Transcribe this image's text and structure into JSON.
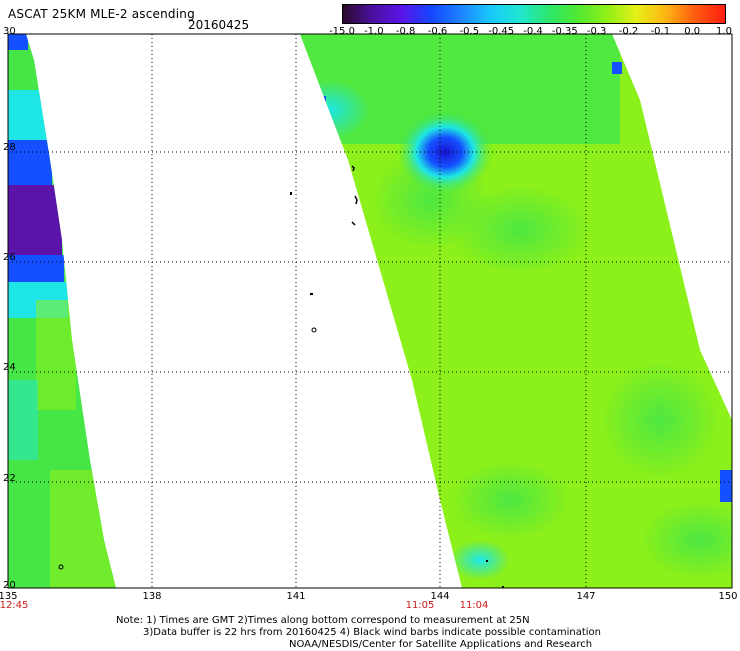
{
  "header": {
    "title": "ASCAT 25KM MLE-2 ascending",
    "date": "20160425"
  },
  "colorbar": {
    "labels": [
      "-15.0",
      "-1.0",
      "-0.8",
      "-0.6",
      "-0.5",
      "-0.45",
      "-0.4",
      "-0.35",
      "-0.3",
      "-0.2",
      "-0.1",
      "0.0",
      "1.0"
    ],
    "colors": [
      "#2a0a2a",
      "#4b10a0",
      "#5a14e6",
      "#1446ff",
      "#1e82ff",
      "#18c8ff",
      "#20e6d2",
      "#2ce66e",
      "#50e830",
      "#90f018",
      "#e6f018",
      "#ffb414",
      "#ff5a10",
      "#ff1e10"
    ]
  },
  "map": {
    "lat_labels": [
      "30",
      "28",
      "26",
      "24",
      "22",
      "20"
    ],
    "lon_labels": [
      "135",
      "138",
      "141",
      "144",
      "147",
      "150"
    ],
    "times": [
      {
        "lon": "135",
        "label": "12:45"
      },
      {
        "lon": "144",
        "label": "11:05"
      },
      {
        "lon": "145.2",
        "label": "11:04"
      }
    ],
    "field_colors": {
      "background_green": "#8cf01a",
      "mid_green": "#46e646",
      "cyan": "#1ee6e6",
      "blue": "#1450ff",
      "deep_blue": "#1a14d2",
      "purple": "#5a14aa"
    }
  },
  "notes": {
    "line1": "Note: 1) Times are GMT 2)Times along bottom correspond to measurement at 25N",
    "line2": "3)Data buffer is 22 hrs from 20160425 4) Black wind barbs indicate possible contamination",
    "line3": "NOAA/NESDIS/Center for Satellite Applications and Research"
  }
}
